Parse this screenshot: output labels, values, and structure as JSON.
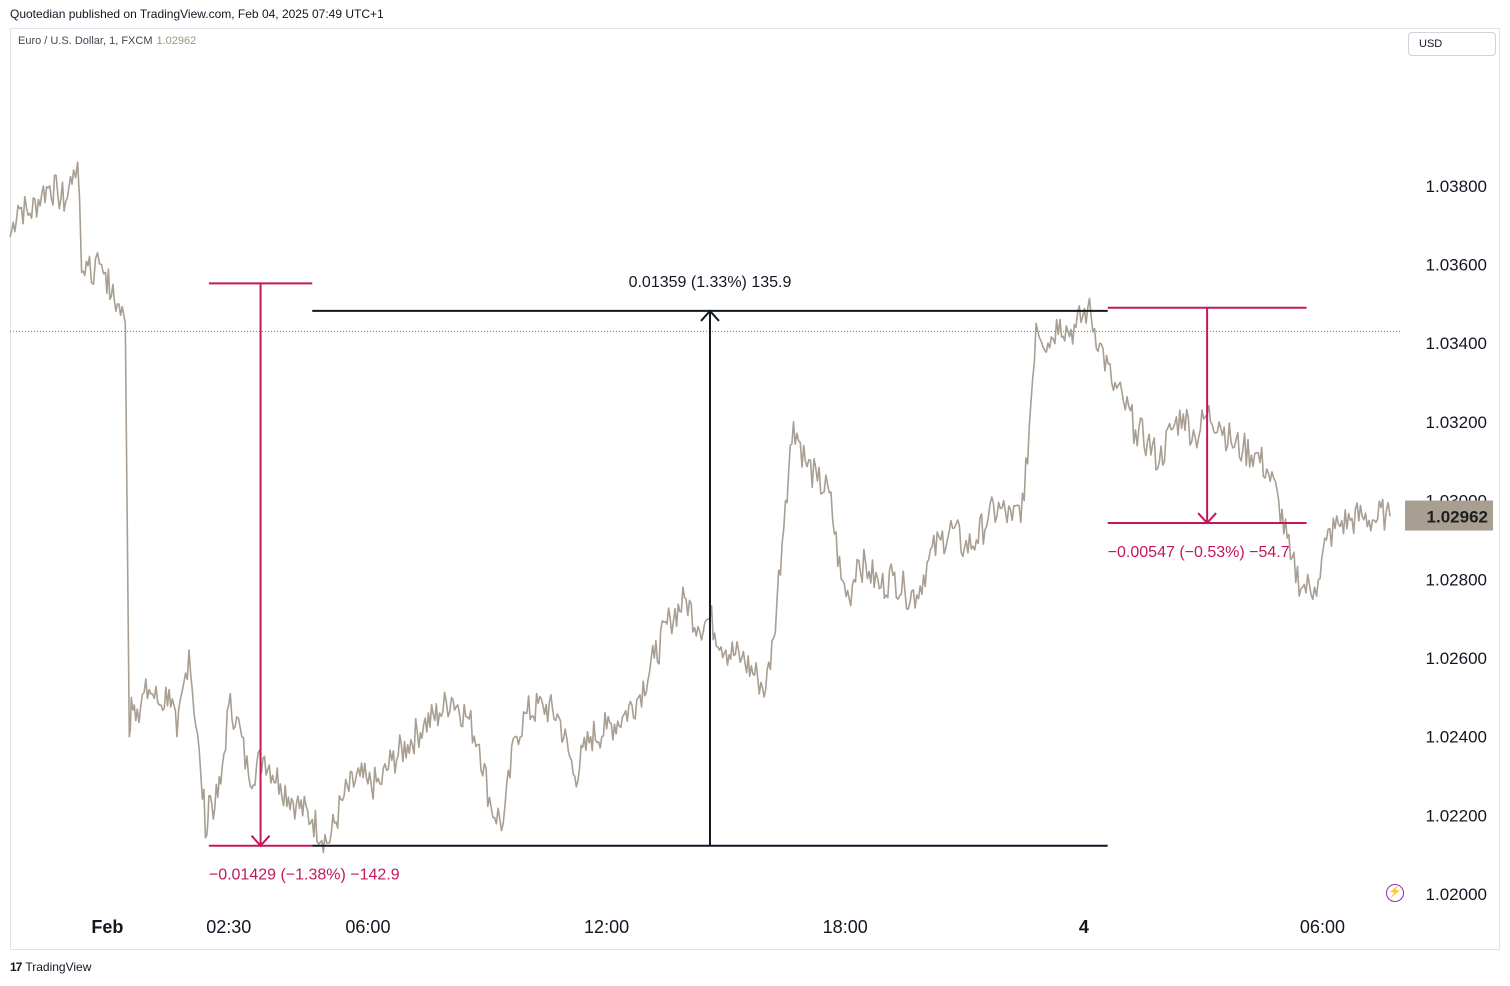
{
  "header": {
    "published": "Quotedian published on TradingView.com, Feb 04, 2025 07:49 UTC+1",
    "symbol": "Euro / U.S. Dollar, 1, FXCM",
    "last_price": "1.02962",
    "currency": "USD"
  },
  "footer": {
    "logo": "17",
    "brand": "TradingView"
  },
  "colors": {
    "price_line": "#a89e92",
    "measure_up": "#131722",
    "measure_down": "#c2185b",
    "price_badge": "#a89e92"
  },
  "icons": {
    "bolt": "lightning-icon"
  },
  "chart_data": {
    "type": "line",
    "title": "",
    "xlabel": "",
    "ylabel": "",
    "ylim": [
      1.0198,
      1.0414
    ],
    "y_ticks": [
      "1.02000",
      "1.02200",
      "1.02400",
      "1.02600",
      "1.02800",
      "1.03000",
      "1.03200",
      "1.03400",
      "1.03600",
      "1.03800"
    ],
    "x_ticks": [
      "Feb",
      "02:30",
      "06:00",
      "12:00",
      "18:00",
      "4",
      "06:00"
    ],
    "x_tick_hours": [
      -0.55,
      2.5,
      6.0,
      12.0,
      18.0,
      24.0,
      30.0
    ],
    "x_range_hours": [
      -3.0,
      32.0
    ],
    "price_label": "1.02962",
    "current_price_marker": 1.0343,
    "series": [
      {
        "x_hours": [
          -3.0,
          -2.8,
          -2.5,
          -2.2,
          -2.0,
          -1.8,
          -1.6,
          -1.4,
          -1.3,
          -1.2,
          -1.0,
          -0.9,
          -0.8,
          -0.7,
          -0.6,
          -0.45,
          -0.3,
          -0.1,
          0.0,
          0.05,
          0.2,
          0.5,
          0.8,
          1.0,
          1.2,
          1.5,
          1.8,
          1.95,
          2.0,
          2.15,
          2.3,
          2.5,
          2.7,
          3.0,
          3.4,
          3.8,
          4.2,
          4.6,
          5.0,
          5.4,
          5.8,
          6.0,
          6.3,
          6.6,
          7.0,
          7.4,
          7.8,
          8.1,
          8.5,
          8.8,
          9.1,
          9.4,
          9.7,
          10.0,
          10.4,
          10.8,
          11.2,
          11.6,
          12.0,
          12.4,
          12.8,
          13.2,
          13.6,
          14.0,
          14.3,
          14.6,
          15.0,
          15.4,
          15.8,
          16.0,
          16.2,
          16.5,
          16.7,
          17.0,
          17.3,
          17.6,
          17.9,
          18.1,
          18.3,
          18.6,
          18.9,
          19.2,
          19.5,
          19.8,
          20.1,
          20.4,
          20.7,
          21.0,
          21.3,
          21.6,
          21.9,
          22.2,
          22.5,
          22.8,
          23.1,
          23.4,
          23.6,
          23.8,
          24.1,
          24.4,
          24.7,
          25.0,
          25.3,
          25.6,
          25.9,
          26.2,
          26.5,
          26.8,
          27.1,
          27.4,
          27.7,
          28.0,
          28.3,
          28.6,
          28.9,
          29.2,
          29.5,
          29.8,
          29.9,
          30.1,
          30.4,
          30.7,
          31.0,
          31.3,
          31.6,
          31.7
        ],
        "values": [
          1.0367,
          1.0375,
          1.0373,
          1.0378,
          1.038,
          1.0378,
          1.0376,
          1.0384,
          1.0386,
          1.0358,
          1.0362,
          1.0355,
          1.0363,
          1.036,
          1.0358,
          1.0352,
          1.035,
          1.0345,
          1.024,
          1.025,
          1.0247,
          1.0252,
          1.0248,
          1.0252,
          1.024,
          1.0262,
          1.023,
          1.0215,
          1.0225,
          1.0222,
          1.0228,
          1.0248,
          1.0245,
          1.023,
          1.0235,
          1.0228,
          1.0223,
          1.0219,
          1.0213,
          1.0225,
          1.023,
          1.0228,
          1.0228,
          1.0234,
          1.0238,
          1.0243,
          1.0246,
          1.025,
          1.0245,
          1.0238,
          1.0222,
          1.0218,
          1.024,
          1.0246,
          1.0248,
          1.0245,
          1.023,
          1.024,
          1.0242,
          1.0245,
          1.025,
          1.026,
          1.027,
          1.0275,
          1.0268,
          1.027,
          1.0262,
          1.026,
          1.0255,
          1.0252,
          1.0265,
          1.03,
          1.032,
          1.031,
          1.0305,
          1.0302,
          1.028,
          1.0275,
          1.0285,
          1.0282,
          1.0278,
          1.0281,
          1.0277,
          1.0276,
          1.0285,
          1.029,
          1.0293,
          1.0288,
          1.029,
          1.0296,
          1.0298,
          1.0295,
          1.03,
          1.0345,
          1.034,
          1.0346,
          1.0343,
          1.0344,
          1.0349,
          1.034,
          1.033,
          1.0325,
          1.0318,
          1.0315,
          1.031,
          1.0318,
          1.0322,
          1.0316,
          1.0322,
          1.032,
          1.0315,
          1.0313,
          1.0312,
          1.0308,
          1.03,
          1.0285,
          1.0278,
          1.0278,
          1.028,
          1.029,
          1.0294,
          1.0295,
          1.0296,
          1.0295,
          1.0297,
          1.0296
        ]
      }
    ],
    "measurements": [
      {
        "label": "−0.01429 (−1.38%) −142.9",
        "direction": "down",
        "from_price": 1.03552,
        "to_price": 1.02123,
        "from_hour": 2.0,
        "to_hour": 4.6
      },
      {
        "label": "0.01359 (1.33%) 135.9",
        "direction": "up",
        "from_price": 1.02123,
        "to_price": 1.03482,
        "from_hour": 4.6,
        "to_hour": 24.6
      },
      {
        "label": "−0.00547 (−0.53%) −54.7",
        "direction": "down",
        "from_price": 1.0349,
        "to_price": 1.02943,
        "from_hour": 24.6,
        "to_hour": 29.6
      }
    ]
  }
}
